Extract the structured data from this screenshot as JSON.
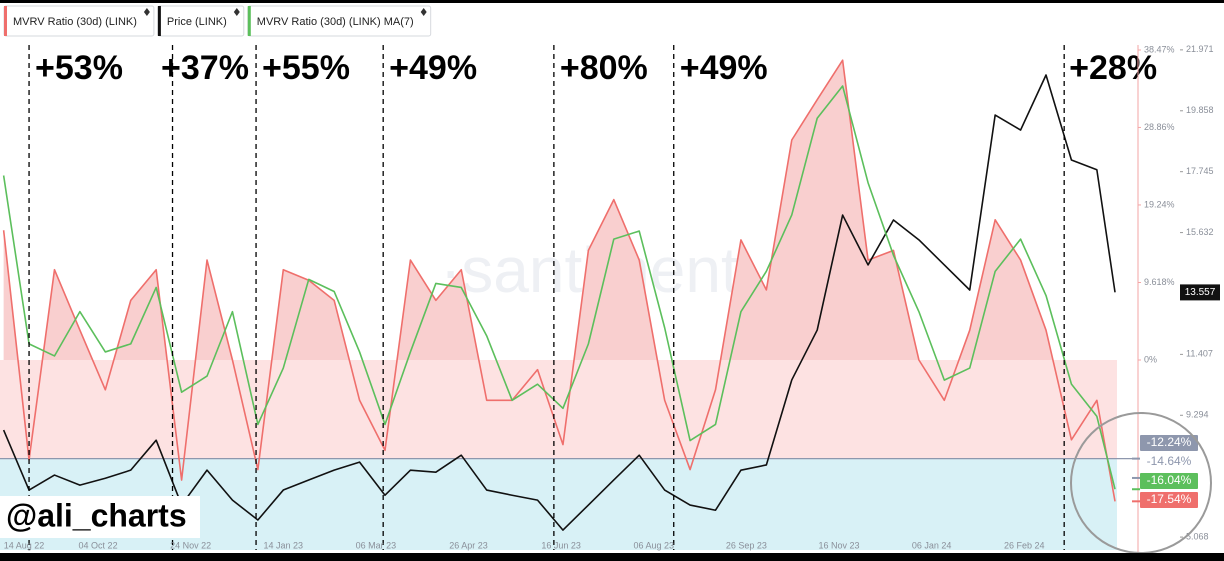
{
  "chart_data": {
    "type": "line",
    "legend_items": [
      "MVRV Ratio (30d) (LINK)",
      "Price (LINK)",
      "MVRV Ratio (30d) (LINK) MA(7)"
    ],
    "watermark": "·santiment·",
    "credit": "@ali_charts",
    "x": [
      "2022-08-13",
      "2022-08-27",
      "2022-09-10",
      "2022-09-24",
      "2022-10-08",
      "2022-10-22",
      "2022-11-05",
      "2022-11-19",
      "2022-12-03",
      "2022-12-17",
      "2022-12-31",
      "2023-01-14",
      "2023-01-28",
      "2023-02-11",
      "2023-02-25",
      "2023-03-11",
      "2023-03-25",
      "2023-04-08",
      "2023-04-22",
      "2023-05-06",
      "2023-05-20",
      "2023-06-03",
      "2023-06-17",
      "2023-07-01",
      "2023-07-15",
      "2023-07-29",
      "2023-08-12",
      "2023-08-26",
      "2023-09-09",
      "2023-09-23",
      "2023-10-07",
      "2023-10-21",
      "2023-11-04",
      "2023-11-18",
      "2023-12-02",
      "2023-12-16",
      "2023-12-30",
      "2024-01-13",
      "2024-01-27",
      "2024-02-10",
      "2024-02-24",
      "2024-03-09",
      "2024-03-23",
      "2024-04-06",
      "2024-04-16"
    ],
    "xlim": [
      "2022-08-11",
      "2024-04-27"
    ],
    "xticks": [
      {
        "value": "2022-08-14",
        "label": "14 Aug 22"
      },
      {
        "value": "2022-10-04",
        "label": "04 Oct 22"
      },
      {
        "value": "2022-11-24",
        "label": "24 Nov 22"
      },
      {
        "value": "2023-01-14",
        "label": "14 Jan 23"
      },
      {
        "value": "2023-03-06",
        "label": "06 Mar 23"
      },
      {
        "value": "2023-04-26",
        "label": "26 Apr 23"
      },
      {
        "value": "2023-06-16",
        "label": "16 Jun 23"
      },
      {
        "value": "2023-08-06",
        "label": "06 Aug 23"
      },
      {
        "value": "2023-09-26",
        "label": "26 Sep 23"
      },
      {
        "value": "2023-11-16",
        "label": "16 Nov 23"
      },
      {
        "value": "2024-01-06",
        "label": "06 Jan 24"
      },
      {
        "value": "2024-02-26",
        "label": "26 Feb 24"
      }
    ],
    "ylim": [
      -23.58,
      39.09
    ],
    "yticks": [
      {
        "value": 38.47,
        "label": "38.47%"
      },
      {
        "value": 28.86,
        "label": "28.86%"
      },
      {
        "value": 19.24,
        "label": "19.24%"
      },
      {
        "value": 9.618,
        "label": "9.618%"
      },
      {
        "value": 0,
        "label": "0%"
      }
    ],
    "y2lim": [
      4.62,
      22.14
    ],
    "y2ticks": [
      21.971,
      19.858,
      17.745,
      15.632,
      11.407,
      9.294,
      5.068
    ],
    "bands": [
      {
        "from": -12.24,
        "to": 0,
        "color": "#fde2e2"
      },
      {
        "to": -12.24,
        "color": "#d8f1f6"
      }
    ],
    "positive_fill": "#f9cfcf",
    "series": [
      {
        "name": "MVRV Ratio (30d) (LINK)",
        "color": "#ef6f6c",
        "axis": "y",
        "values": [
          16.1,
          -12.4,
          11.2,
          3.7,
          -3.7,
          7.4,
          11.2,
          -14.9,
          12.4,
          0,
          -13.6,
          11.2,
          9.9,
          7.4,
          -5.0,
          -11.2,
          12.4,
          7.4,
          11.2,
          -5.0,
          -5.0,
          -1.2,
          -10.5,
          13.6,
          19.9,
          12.4,
          -5.0,
          -13.6,
          -3.7,
          14.9,
          8.7,
          27.3,
          32.3,
          37.2,
          12.4,
          13.6,
          0,
          -5.0,
          3.7,
          17.4,
          12.4,
          3.7,
          -9.9,
          -5.0,
          -17.54
        ]
      },
      {
        "name": "Price (LINK)",
        "color": "#111111",
        "axis": "y2",
        "values": [
          8.78,
          6.7,
          7.22,
          6.87,
          7.11,
          7.39,
          8.43,
          6.18,
          7.39,
          6.35,
          5.66,
          6.7,
          7.05,
          7.39,
          7.67,
          6.52,
          7.39,
          7.32,
          7.91,
          6.7,
          6.52,
          6.35,
          5.31,
          6.18,
          7.05,
          7.91,
          6.7,
          6.18,
          6.0,
          7.39,
          7.57,
          10.52,
          12.25,
          16.24,
          14.51,
          16.07,
          15.38,
          14.51,
          13.64,
          19.71,
          19.19,
          21.1,
          18.15,
          17.81,
          13.56
        ]
      },
      {
        "name": "MVRV Ratio (30d) (LINK) MA(7)",
        "color": "#5cbf5c",
        "axis": "y",
        "values": [
          22.9,
          2.0,
          0.5,
          6.0,
          1.0,
          2.0,
          9.0,
          -4.0,
          -2.0,
          6.0,
          -8.0,
          -1.0,
          10.0,
          8.5,
          1.0,
          -8.0,
          1.0,
          9.5,
          9.0,
          3.0,
          -5.0,
          -3.0,
          -6.0,
          2.0,
          15.0,
          16.0,
          4.0,
          -10.0,
          -8.0,
          6.0,
          11.0,
          18.0,
          30.0,
          34.0,
          22.0,
          13.0,
          6.0,
          -2.5,
          -1.0,
          11.0,
          15.0,
          8.0,
          -3.0,
          -7.0,
          -16.04
        ]
      }
    ],
    "annotations": [
      {
        "x": "2022-08-27",
        "text": "+53%"
      },
      {
        "x": "2022-11-14",
        "text": "+37%"
      },
      {
        "x": "2022-12-30",
        "text": "+55%"
      },
      {
        "x": "2023-03-10",
        "text": "+49%"
      },
      {
        "x": "2023-06-12",
        "text": "+80%"
      },
      {
        "x": "2023-08-17",
        "text": "+49%"
      },
      {
        "x": "2024-03-19",
        "text": "+28%"
      }
    ],
    "y_markers": [
      {
        "value": -12.24,
        "label": "-12.24%",
        "color": "#8e97ad"
      },
      {
        "value": -14.64,
        "label": "-14.64%",
        "color": "#ffffff"
      },
      {
        "value": -16.04,
        "label": "-16.04%",
        "color": "#5cbf5c"
      },
      {
        "value": -17.54,
        "label": "-17.54%",
        "color": "#ef6f6c"
      }
    ],
    "y2_markers": [
      {
        "value": 13.557,
        "label": "13.557",
        "color": "#111111"
      }
    ]
  }
}
